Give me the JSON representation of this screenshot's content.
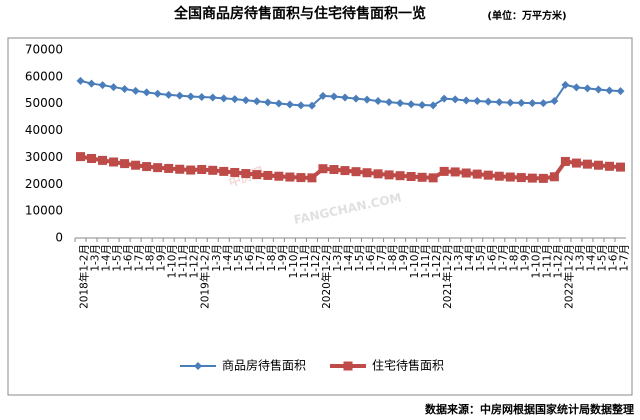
{
  "chart_data": {
    "type": "line",
    "title": "全国商品房待售面积与住宅待售面积一览",
    "subtitle": "(单位：万平方米)",
    "source": "数据来源：中房网根据国家统计局数据整理",
    "watermark": [
      "中房网",
      "FANGCHAN.COM"
    ],
    "categories": [
      "2018年1-2月",
      "1-3月",
      "1-4月",
      "1-5月",
      "1-6月",
      "1-7月",
      "1-8月",
      "1-9月",
      "1-10月",
      "1-11月",
      "1-12月",
      "2019年1-2月",
      "1-3月",
      "1-4月",
      "1-5月",
      "1-6月",
      "1-7月",
      "1-8月",
      "1-9月",
      "1-10月",
      "1-11月",
      "1-12月",
      "2020年1-2月",
      "1-3月",
      "1-4月",
      "1-5月",
      "1-6月",
      "1-7月",
      "1-8月",
      "1-9月",
      "1-10月",
      "1-11月",
      "1-12月",
      "2021年1-2月",
      "1-3月",
      "1-4月",
      "1-5月",
      "1-6月",
      "1-7月",
      "1-8月",
      "1-9月",
      "1-10月",
      "1-11月",
      "1-12月",
      "2022年1-2月",
      "1-3月",
      "1-4月",
      "1-5月",
      "1-6月",
      "1-7月"
    ],
    "series": [
      {
        "name": "商品房待售面积",
        "color": "#4a7ebb",
        "marker": "diamond",
        "values": [
          58500,
          57500,
          56900,
          56200,
          55500,
          54800,
          54200,
          53700,
          53300,
          53000,
          52700,
          52500,
          52300,
          52000,
          51700,
          51300,
          50900,
          50500,
          50100,
          49700,
          49400,
          49300,
          52900,
          52700,
          52300,
          51900,
          51500,
          51000,
          50600,
          50200,
          49800,
          49500,
          49400,
          51900,
          51600,
          51200,
          51000,
          50800,
          50600,
          50400,
          50300,
          50200,
          50200,
          51000,
          57000,
          56100,
          55700,
          55300,
          54900,
          54700
        ]
      },
      {
        "name": "住宅待售面积",
        "color": "#be4b48",
        "marker": "square",
        "values": [
          30300,
          29600,
          28900,
          28300,
          27700,
          27100,
          26600,
          26200,
          25900,
          25600,
          25300,
          25500,
          25200,
          24800,
          24400,
          24000,
          23600,
          23300,
          23000,
          22700,
          22500,
          22400,
          25800,
          25500,
          25100,
          24700,
          24300,
          23900,
          23500,
          23200,
          22900,
          22600,
          22400,
          24800,
          24600,
          24200,
          23800,
          23400,
          23000,
          22700,
          22500,
          22300,
          22200,
          22800,
          28500,
          27900,
          27500,
          27100,
          26700,
          26400
        ]
      }
    ],
    "ylim": [
      0,
      70000
    ],
    "yticks": [
      0,
      10000,
      20000,
      30000,
      40000,
      50000,
      60000,
      70000
    ],
    "grid": false,
    "legend": "bottom"
  }
}
